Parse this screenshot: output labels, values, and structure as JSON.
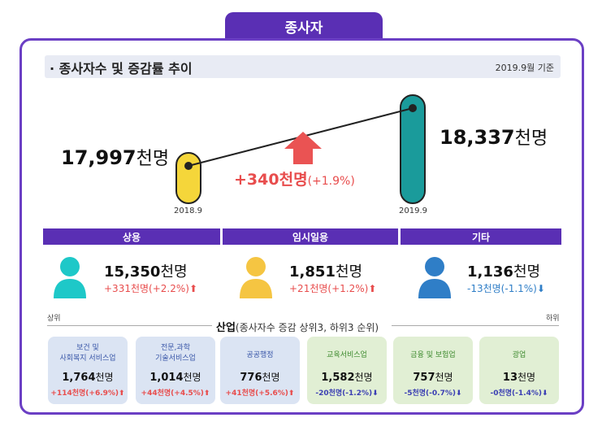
{
  "header": {
    "tab_title": "종사자"
  },
  "section": {
    "title": "· 종사자수 및 증감률 추이",
    "basis": "2019.9월 기준"
  },
  "chart_data": {
    "type": "bar",
    "title": "종사자수 및 증감률 추이",
    "unit": "천명",
    "categories": [
      "2018.9",
      "2019.9"
    ],
    "values": [
      17997,
      18337
    ],
    "colors": [
      "#f5d63a",
      "#1a9b9b"
    ],
    "change": {
      "value": "+340",
      "unit": "천명",
      "rate": "(+1.9%)"
    }
  },
  "labels": {
    "v2018": "17,997",
    "v2019": "18,337",
    "unit": "천명",
    "change_value": "+340",
    "change_unit": "천명",
    "change_rate": "(+1.9%)"
  },
  "categories": [
    {
      "name": "상용",
      "value": "15,350",
      "unit": "천명",
      "change": "+331천명(+2.2%)",
      "arrow": "⬆",
      "direction": "up",
      "color": "#1ec8c8"
    },
    {
      "name": "임시일용",
      "value": "1,851",
      "unit": "천명",
      "change": "+21천명(+1.2%)",
      "arrow": "⬆",
      "direction": "up",
      "color": "#f5c542"
    },
    {
      "name": "기타",
      "value": "1,136",
      "unit": "천명",
      "change": "-13천명(-1.1%)",
      "arrow": "⬇",
      "direction": "down",
      "color": "#2f7ec7"
    }
  ],
  "industry": {
    "title": "산업",
    "subtitle": "(종사자수 증감 상위3, 하위3 순위)",
    "top_label": "상위",
    "bottom_label": "하위",
    "cards": [
      {
        "name": "보건 및\n사회복지 서비스업",
        "value": "1,764",
        "unit": "천명",
        "change": "+114천명(+6.9%)⬆",
        "group": "top"
      },
      {
        "name": "전문,과학\n기술서비스업",
        "value": "1,014",
        "unit": "천명",
        "change": "+44천명(+4.5%)⬆",
        "group": "top"
      },
      {
        "name": "공공행정",
        "value": "776",
        "unit": "천명",
        "change": "+41천명(+5.6%)⬆",
        "group": "top"
      },
      {
        "name": "교육서비스업",
        "value": "1,582",
        "unit": "천명",
        "change": "-20천명(-1.2%)⬇",
        "group": "bottom"
      },
      {
        "name": "금융 및 보험업",
        "value": "757",
        "unit": "천명",
        "change": "-5천명(-0.7%)⬇",
        "group": "bottom"
      },
      {
        "name": "광업",
        "value": "13",
        "unit": "천명",
        "change": "-0천명(-1.4%)⬇",
        "group": "bottom"
      }
    ]
  }
}
